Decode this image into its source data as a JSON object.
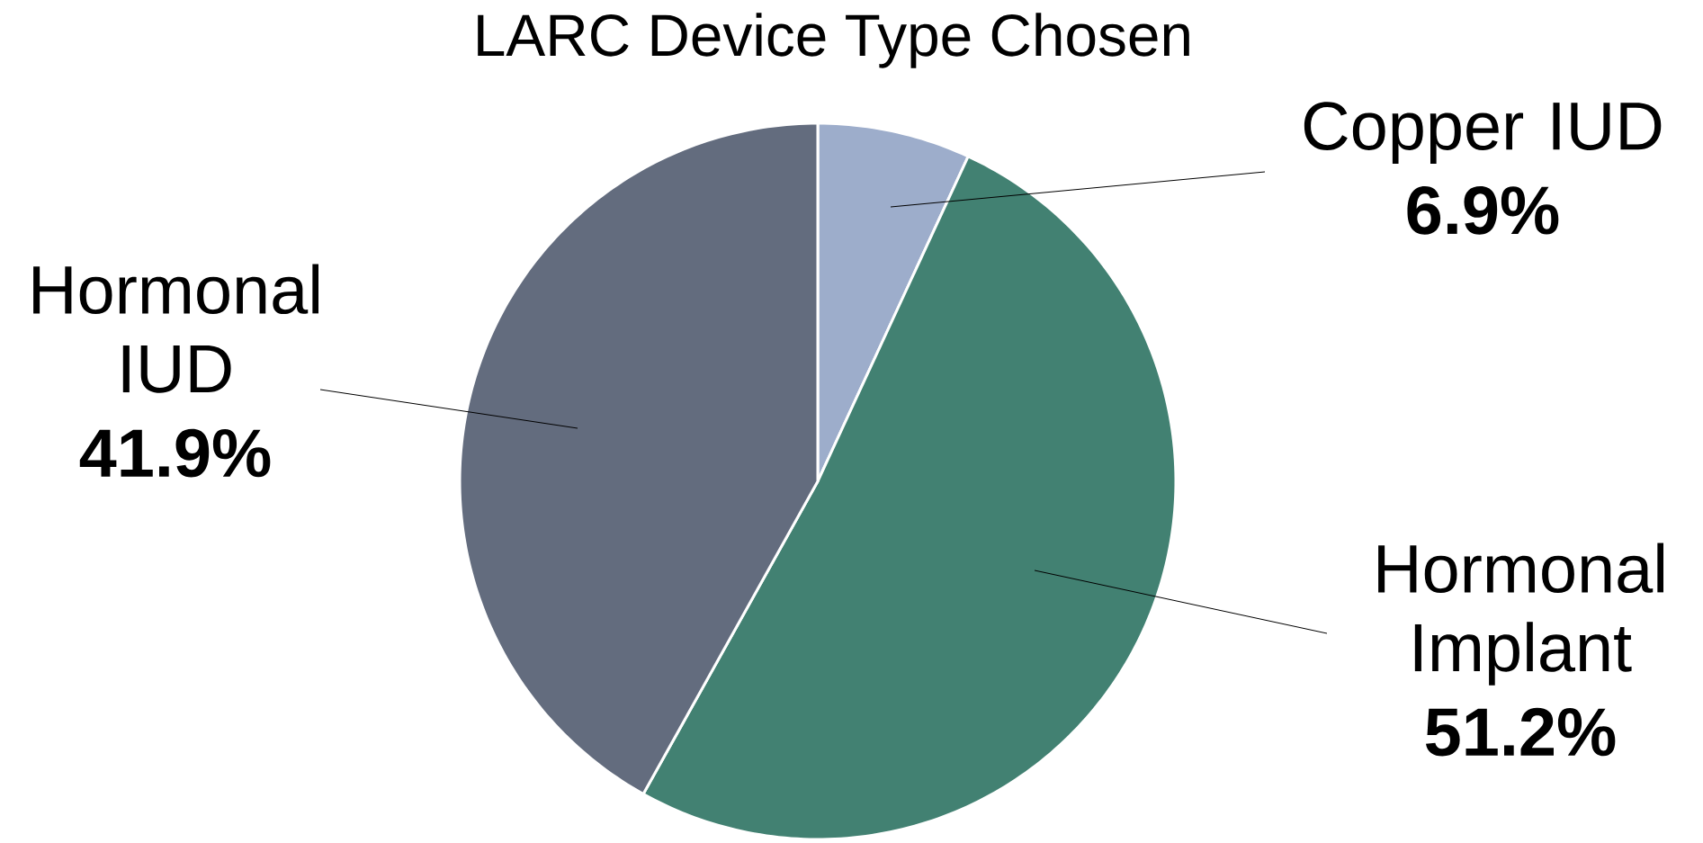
{
  "chart_data": {
    "type": "pie",
    "title": "LARC Device Type Chosen",
    "categories": [
      "Copper IUD",
      "Hormonal Implant",
      "Hormonal IUD"
    ],
    "values": [
      6.9,
      51.2,
      41.9
    ],
    "colors": [
      "#9dadcb",
      "#428172",
      "#636c7e"
    ],
    "value_labels": [
      "6.9%",
      "51.2%",
      "41.9%"
    ]
  }
}
